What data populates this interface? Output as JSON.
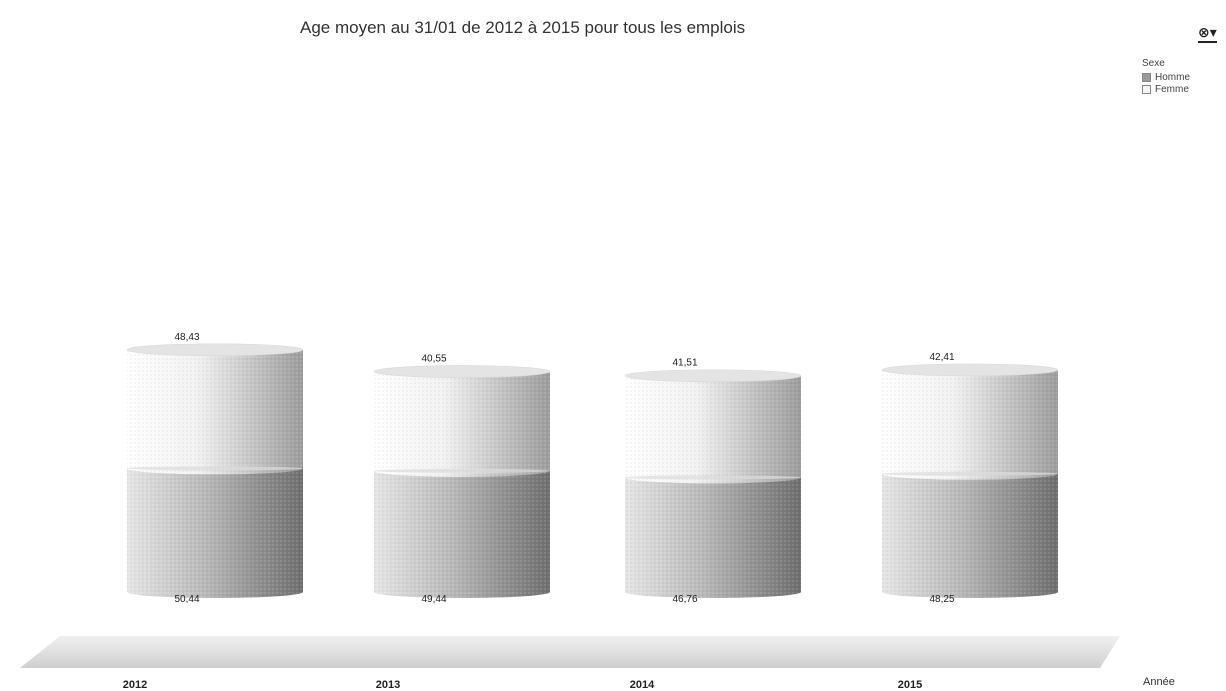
{
  "chart_data": {
    "type": "bar",
    "title": "Age moyen au 31/01 de 2012 à 2015 pour tous les emplois",
    "categories": [
      "2012",
      "2013",
      "2014",
      "2015"
    ],
    "xlabel": "Année",
    "ylabel": "",
    "stacked": true,
    "shape": "cylinder-3d",
    "series": [
      {
        "name": "Homme",
        "values": [
          50.44,
          49.44,
          46.76,
          48.25
        ],
        "color": "#8c8c8c"
      },
      {
        "name": "Femme",
        "values": [
          48.43,
          40.55,
          41.51,
          42.41
        ],
        "color": "#c8c8c8"
      }
    ],
    "legend": {
      "title": "Sexe",
      "position": "top-right"
    },
    "grid": false
  },
  "menu_icon": {
    "name": "chart-menu-icon",
    "glyph": "⊗▾"
  }
}
